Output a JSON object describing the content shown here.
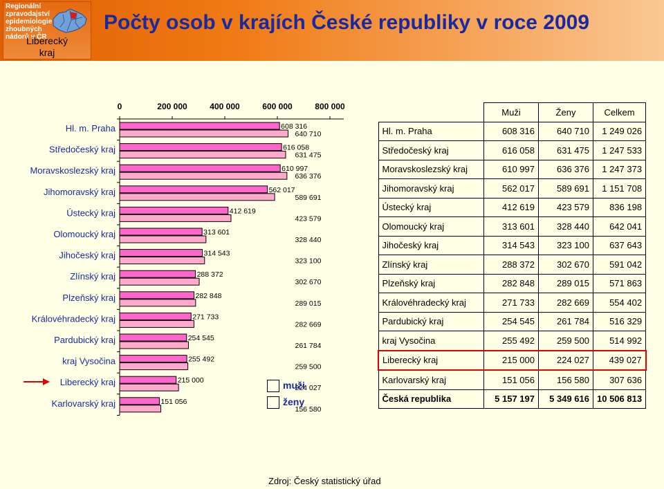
{
  "header": {
    "logo_text": "Regionální zpravodajství\nepidemiologie\nzhoubných\nnádorů v ČR",
    "region_name": "Liberecký\nkraj",
    "title": "Počty osob v krajích České republiky v roce 2009",
    "colors": {
      "banner": "#e06000",
      "title": "#1a2a9c"
    }
  },
  "chart_data": {
    "type": "bar",
    "orientation": "horizontal",
    "categories": [
      "Hl. m. Praha",
      "Středočeský kraj",
      "Moravskoslezský kraj",
      "Jihomoravský kraj",
      "Ústecký kraj",
      "Olomoucký kraj",
      "Jihočeský kraj",
      "Zlínský kraj",
      "Plzeňský kraj",
      "Královéhradecký kraj",
      "Pardubický kraj",
      "kraj Vysočina",
      "Liberecký kraj",
      "Karlovarský kraj"
    ],
    "series": [
      {
        "name": "muži",
        "color": "#ff66cc",
        "values": [
          608316,
          616058,
          610997,
          562017,
          412619,
          313601,
          314543,
          288372,
          282848,
          271733,
          254545,
          255492,
          215000,
          151056
        ]
      },
      {
        "name": "ženy",
        "color": "#ffaacc",
        "values": [
          640710,
          631475,
          636376,
          589691,
          423579,
          328440,
          323100,
          302670,
          289015,
          282669,
          261784,
          259500,
          224027,
          156580
        ]
      }
    ],
    "data_labels": [
      [
        "608 316",
        "640 710"
      ],
      [
        "616 058",
        "631 475"
      ],
      [
        "610 997",
        "636 376"
      ],
      [
        "562 017",
        "589 691"
      ],
      [
        "412 619",
        "423 579"
      ],
      [
        "313 601",
        "328 440"
      ],
      [
        "314 543",
        "323 100"
      ],
      [
        "288 372",
        "302 670"
      ],
      [
        "282 848",
        "289 015"
      ],
      [
        "271 733",
        "282 669"
      ],
      [
        "254 545",
        "261 784"
      ],
      [
        "255 492",
        "259 500"
      ],
      [
        "215 000",
        "224 027"
      ],
      [
        "151 056",
        "156 580"
      ]
    ],
    "x_ticks": [
      0,
      200000,
      400000,
      600000,
      800000
    ],
    "x_tick_labels": [
      "0",
      "200 000",
      "400 000",
      "600 000",
      "800 000"
    ],
    "xlim": [
      0,
      800000
    ],
    "axis_position": "top",
    "highlight_category": "Liberecký kraj",
    "legend": [
      "muži",
      "ženy"
    ],
    "legend_placement": "bottom-right"
  },
  "table": {
    "headers": [
      "Muži",
      "Ženy",
      "Celkem"
    ],
    "rows": [
      {
        "name": "Hl. m. Praha",
        "values": [
          "608 316",
          "640 710",
          "1 249 026"
        ]
      },
      {
        "name": "Středočeský kraj",
        "values": [
          "616 058",
          "631 475",
          "1 247 533"
        ]
      },
      {
        "name": "Moravskoslezský kraj",
        "values": [
          "610 997",
          "636 376",
          "1 247 373"
        ]
      },
      {
        "name": "Jihomoravský kraj",
        "values": [
          "562 017",
          "589 691",
          "1 151 708"
        ]
      },
      {
        "name": "Ústecký kraj",
        "values": [
          "412 619",
          "423 579",
          "836 198"
        ]
      },
      {
        "name": "Olomoucký kraj",
        "values": [
          "313 601",
          "328 440",
          "642 041"
        ]
      },
      {
        "name": "Jihočeský kraj",
        "values": [
          "314 543",
          "323 100",
          "637 643"
        ]
      },
      {
        "name": "Zlínský kraj",
        "values": [
          "288 372",
          "302 670",
          "591 042"
        ]
      },
      {
        "name": "Plzeňský kraj",
        "values": [
          "282 848",
          "289 015",
          "571 863"
        ]
      },
      {
        "name": "Královéhradecký kraj",
        "values": [
          "271 733",
          "282 669",
          "554 402"
        ]
      },
      {
        "name": "Pardubický kraj",
        "values": [
          "254 545",
          "261 784",
          "516 329"
        ]
      },
      {
        "name": "kraj Vysočina",
        "values": [
          "255 492",
          "259 500",
          "514 992"
        ]
      },
      {
        "name": "Liberecký kraj",
        "values": [
          "215 000",
          "224 027",
          "439 027"
        ]
      },
      {
        "name": "Karlovarský kraj",
        "values": [
          "151 056",
          "156 580",
          "307 636"
        ]
      },
      {
        "name": "Česká republika",
        "values": [
          "5 157 197",
          "5 349 616",
          "10 506 813"
        ]
      }
    ],
    "highlight_row": "Liberecký kraj",
    "bold_row": "Česká republika",
    "highlight_color": "#e00000"
  },
  "footer": {
    "source": "Zdroj: Český statistický úřad"
  }
}
